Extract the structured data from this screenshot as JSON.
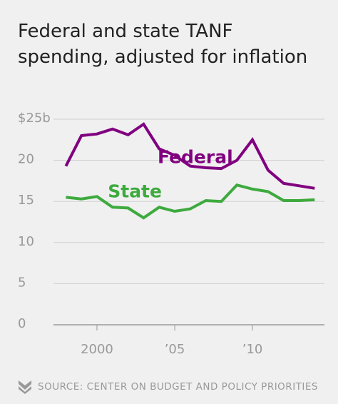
{
  "chart_data": {
    "type": "line",
    "title": "Federal and state TANF spending, adjusted for inflation",
    "x": [
      1998,
      1999,
      2000,
      2001,
      2002,
      2003,
      2004,
      2005,
      2006,
      2007,
      2008,
      2009,
      2010,
      2011,
      2012,
      2013,
      2014
    ],
    "series": [
      {
        "name": "Federal",
        "color": "#800080",
        "values": [
          19.3,
          23.0,
          23.2,
          23.8,
          23.1,
          24.4,
          21.4,
          20.6,
          19.3,
          19.1,
          19.0,
          20.0,
          22.5,
          18.8,
          17.2,
          16.9,
          16.6
        ]
      },
      {
        "name": "State",
        "color": "#3eaa3e",
        "values": [
          15.5,
          15.3,
          15.6,
          14.3,
          14.2,
          13.0,
          14.3,
          13.8,
          14.1,
          15.1,
          15.0,
          17.0,
          16.5,
          16.2,
          15.1,
          15.1,
          15.2
        ]
      }
    ],
    "xlim": [
      1997.8,
      2014.4
    ],
    "xticks": [
      2000,
      {
        "value": 2005,
        "label": "’05"
      },
      {
        "value": 2010,
        "label": "’10"
      }
    ],
    "ylim": [
      0,
      25
    ],
    "yticks": [
      0,
      5,
      10,
      15,
      20,
      {
        "value": 25,
        "label": "$25b"
      }
    ],
    "grid": true,
    "source": "SOURCE: CENTER ON BUDGET AND POLICY PRIORITIES"
  }
}
